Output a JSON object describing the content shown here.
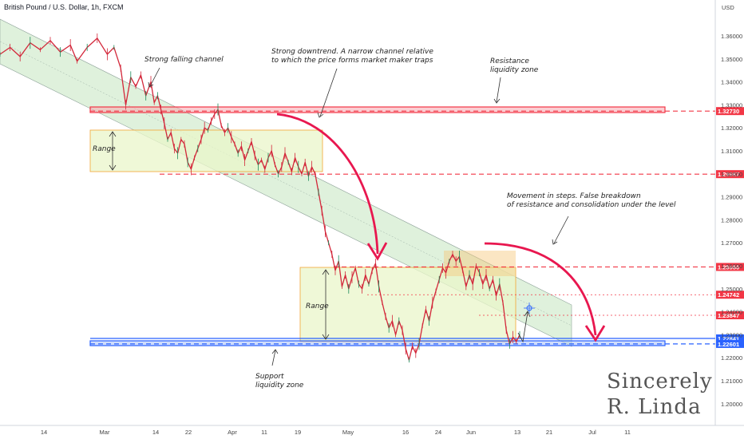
{
  "chart_data": {
    "type": "line",
    "symbol_title": "British Pound / U.S. Dollar, 1h, FXCM",
    "currency": "USD",
    "x_tick_labels": [
      "14",
      "Mar",
      "14",
      "22",
      "Apr",
      "11",
      "19",
      "May",
      "16",
      "24",
      "Jun",
      "13",
      "21",
      "Jul",
      "11"
    ],
    "y_tick_labels": [
      "1.36000",
      "1.35000",
      "1.34000",
      "1.33000",
      "1.32000",
      "1.31000",
      "1.30000",
      "1.29000",
      "1.28000",
      "1.27000",
      "1.26000",
      "1.25000",
      "1.24000",
      "1.23000",
      "1.22000",
      "1.21000",
      "1.20000"
    ],
    "ylim": [
      1.195,
      1.367
    ],
    "price_path": [
      [
        0,
        1.352
      ],
      [
        3,
        1.355
      ],
      [
        6,
        1.351
      ],
      [
        9,
        1.357
      ],
      [
        12,
        1.354
      ],
      [
        15,
        1.358
      ],
      [
        18,
        1.353
      ],
      [
        21,
        1.356
      ],
      [
        23,
        1.349
      ],
      [
        26,
        1.355
      ],
      [
        29,
        1.359
      ],
      [
        32,
        1.352
      ],
      [
        34,
        1.355
      ],
      [
        36,
        1.346
      ],
      [
        37.5,
        1.33
      ],
      [
        39,
        1.342
      ],
      [
        40.5,
        1.338
      ],
      [
        42,
        1.343
      ],
      [
        43.5,
        1.334
      ],
      [
        45,
        1.34
      ],
      [
        46,
        1.331
      ],
      [
        47,
        1.334
      ],
      [
        48,
        1.328
      ],
      [
        49,
        1.322
      ],
      [
        50,
        1.315
      ],
      [
        51,
        1.318
      ],
      [
        52,
        1.311
      ],
      [
        53,
        1.309
      ],
      [
        54,
        1.315
      ],
      [
        55,
        1.313
      ],
      [
        56,
        1.305
      ],
      [
        57,
        1.302
      ],
      [
        58,
        1.307
      ],
      [
        59,
        1.311
      ],
      [
        60,
        1.315
      ],
      [
        61,
        1.32
      ],
      [
        62,
        1.319
      ],
      [
        63,
        1.323
      ],
      [
        64,
        1.326
      ],
      [
        65,
        1.328
      ],
      [
        66,
        1.321
      ],
      [
        67,
        1.318
      ],
      [
        68,
        1.32
      ],
      [
        69,
        1.316
      ],
      [
        70,
        1.313
      ],
      [
        71,
        1.309
      ],
      [
        72,
        1.312
      ],
      [
        73,
        1.306
      ],
      [
        74,
        1.31
      ],
      [
        75,
        1.314
      ],
      [
        76,
        1.308
      ],
      [
        77,
        1.304
      ],
      [
        78,
        1.306
      ],
      [
        79,
        1.302
      ],
      [
        80,
        1.307
      ],
      [
        81,
        1.31
      ],
      [
        82,
        1.304
      ],
      [
        83,
        1.3
      ],
      [
        84,
        1.303
      ],
      [
        85,
        1.309
      ],
      [
        86,
        1.305
      ],
      [
        87,
        1.301
      ],
      [
        88,
        1.307
      ],
      [
        89,
        1.303
      ],
      [
        90,
        1.3
      ],
      [
        91,
        1.305
      ],
      [
        92,
        1.299
      ],
      [
        93,
        1.303
      ],
      [
        94,
        1.3
      ],
      [
        95,
        1.292
      ],
      [
        96,
        1.284
      ],
      [
        97,
        1.275
      ],
      [
        98,
        1.27
      ],
      [
        99,
        1.265
      ],
      [
        100,
        1.258
      ],
      [
        101,
        1.262
      ],
      [
        102,
        1.251
      ],
      [
        103,
        1.256
      ],
      [
        104,
        1.25
      ],
      [
        105,
        1.255
      ],
      [
        106,
        1.259
      ],
      [
        107,
        1.252
      ],
      [
        108,
        1.25
      ],
      [
        109,
        1.256
      ],
      [
        110,
        1.252
      ],
      [
        111,
        1.258
      ],
      [
        112,
        1.261
      ],
      [
        113,
        1.251
      ],
      [
        114,
        1.244
      ],
      [
        115,
        1.238
      ],
      [
        116,
        1.233
      ],
      [
        117,
        1.236
      ],
      [
        118,
        1.23
      ],
      [
        119,
        1.236
      ],
      [
        120,
        1.232
      ],
      [
        121,
        1.224
      ],
      [
        122,
        1.219
      ],
      [
        123,
        1.225
      ],
      [
        124,
        1.222
      ],
      [
        125,
        1.226
      ],
      [
        126,
        1.234
      ],
      [
        127,
        1.241
      ],
      [
        128,
        1.236
      ],
      [
        129,
        1.244
      ],
      [
        130,
        1.249
      ],
      [
        131,
        1.254
      ],
      [
        132,
        1.259
      ],
      [
        133,
        1.257
      ],
      [
        134,
        1.262
      ],
      [
        135,
        1.265
      ],
      [
        136,
        1.262
      ],
      [
        137,
        1.264
      ],
      [
        138,
        1.258
      ],
      [
        139,
        1.251
      ],
      [
        140,
        1.256
      ],
      [
        141,
        1.252
      ],
      [
        142,
        1.26
      ],
      [
        143,
        1.257
      ],
      [
        144,
        1.252
      ],
      [
        145,
        1.256
      ],
      [
        146,
        1.25
      ],
      [
        147,
        1.254
      ],
      [
        148,
        1.247
      ],
      [
        149,
        1.252
      ],
      [
        150,
        1.244
      ],
      [
        151,
        1.232
      ],
      [
        152,
        1.226
      ],
      [
        153,
        1.229
      ],
      [
        154,
        1.227
      ],
      [
        155,
        1.23
      ]
    ],
    "levels": [
      {
        "value": 1.3273,
        "label": "1.32730",
        "color": "#f23645",
        "style": "dashed"
      },
      {
        "value": 1.29987,
        "label": "1.29987",
        "color": "#f23645",
        "style": "dashed"
      },
      {
        "value": 1.2595,
        "label": "1.25950",
        "color": "#f23645",
        "style": "dashed"
      },
      {
        "value": 1.24742,
        "label": "1.24742",
        "color": "#f23645",
        "style": "dotted"
      },
      {
        "value": 1.23847,
        "label": "1.23847",
        "color": "#f23645",
        "style": "dotted"
      },
      {
        "value": 1.22841,
        "label": "1.22841",
        "color": "#2962ff",
        "style": "solid"
      },
      {
        "value": 1.22601,
        "label": "1.22601",
        "color": "#2962ff",
        "style": "dashed"
      }
    ],
    "annotations": {
      "falling_channel": "Strong falling channel",
      "downtrend_l1": "Strong downtrend. A narrow channel relative",
      "downtrend_l2": "to which the price forms market maker traps",
      "resistance_l1": "Resistance",
      "resistance_l2": "liquidity zone",
      "steps_l1": "Movement in steps. False breakdown",
      "steps_l2": "of resistance and consolidation under the level",
      "range_1": "Range",
      "range_2": "Range",
      "support_l1": "Support",
      "support_l2": "liquidity zone"
    },
    "signature_l1": "Sincerely",
    "signature_l2": "R. Linda",
    "colors": {
      "candles": "#d3273a",
      "resistance": "#f23645",
      "support": "#2962ff",
      "channel_fill": "#b7dfb2",
      "range_fill": "#e9f5c9",
      "range_border": "#f3a533",
      "arrow": "#e8174f"
    }
  }
}
